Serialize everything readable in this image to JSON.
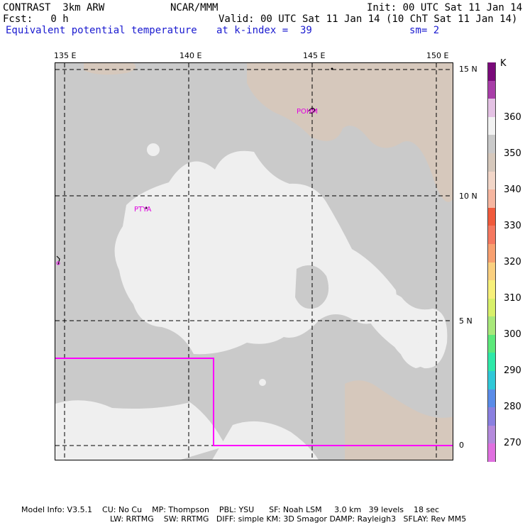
{
  "header": {
    "model": "CONTRAST  3km ARW",
    "org": "NCAR/MMM",
    "init": "Init: 00 UTC Sat 11 Jan 14",
    "fcst": "Fcst:   0 h",
    "valid": "Valid: 00 UTC Sat 11 Jan 14 (10 ChT Sat 11 Jan 14)",
    "field": "Equivalent potential temperature",
    "level": "at k-index =  39",
    "smooth": "sm= 2"
  },
  "axes": {
    "lon_ticks": [
      "135 E",
      "140 E",
      "145 E",
      "150 E"
    ],
    "lat_ticks": [
      "15 N",
      "10 N",
      "5 N",
      "0"
    ]
  },
  "places": [
    "POHM",
    "PTYA"
  ],
  "colorbar": {
    "unit": "K",
    "labels": [
      "360",
      "350",
      "340",
      "330",
      "320",
      "310",
      "300",
      "290",
      "280",
      "270"
    ],
    "colors": [
      "#7a0a7a",
      "#a83ea8",
      "#e4c2e4",
      "#f2f2f2",
      "#cacaca",
      "#d6c8bc",
      "#f2d6c8",
      "#f6b6a0",
      "#f05a3c",
      "#f57860",
      "#f8a070",
      "#fad080",
      "#f7f07a",
      "#d8f06a",
      "#a8e87a",
      "#5ce87a",
      "#2ee8a8",
      "#30c8d8",
      "#5a8ce8",
      "#8a80e0",
      "#b48adc",
      "#e070e0"
    ]
  },
  "footer": {
    "line1": "Model Info: V3.5.1    CU: No Cu    MP: Thompson    PBL: YSU      SF: Noah LSM     3.0 km   39 levels    18 sec",
    "line2": "LW: RRTMG    SW: RRTMG   DIFF: simple KM: 3D Smagor DAMP: Rayleigh3   SFLAY: Rev MM5"
  }
}
